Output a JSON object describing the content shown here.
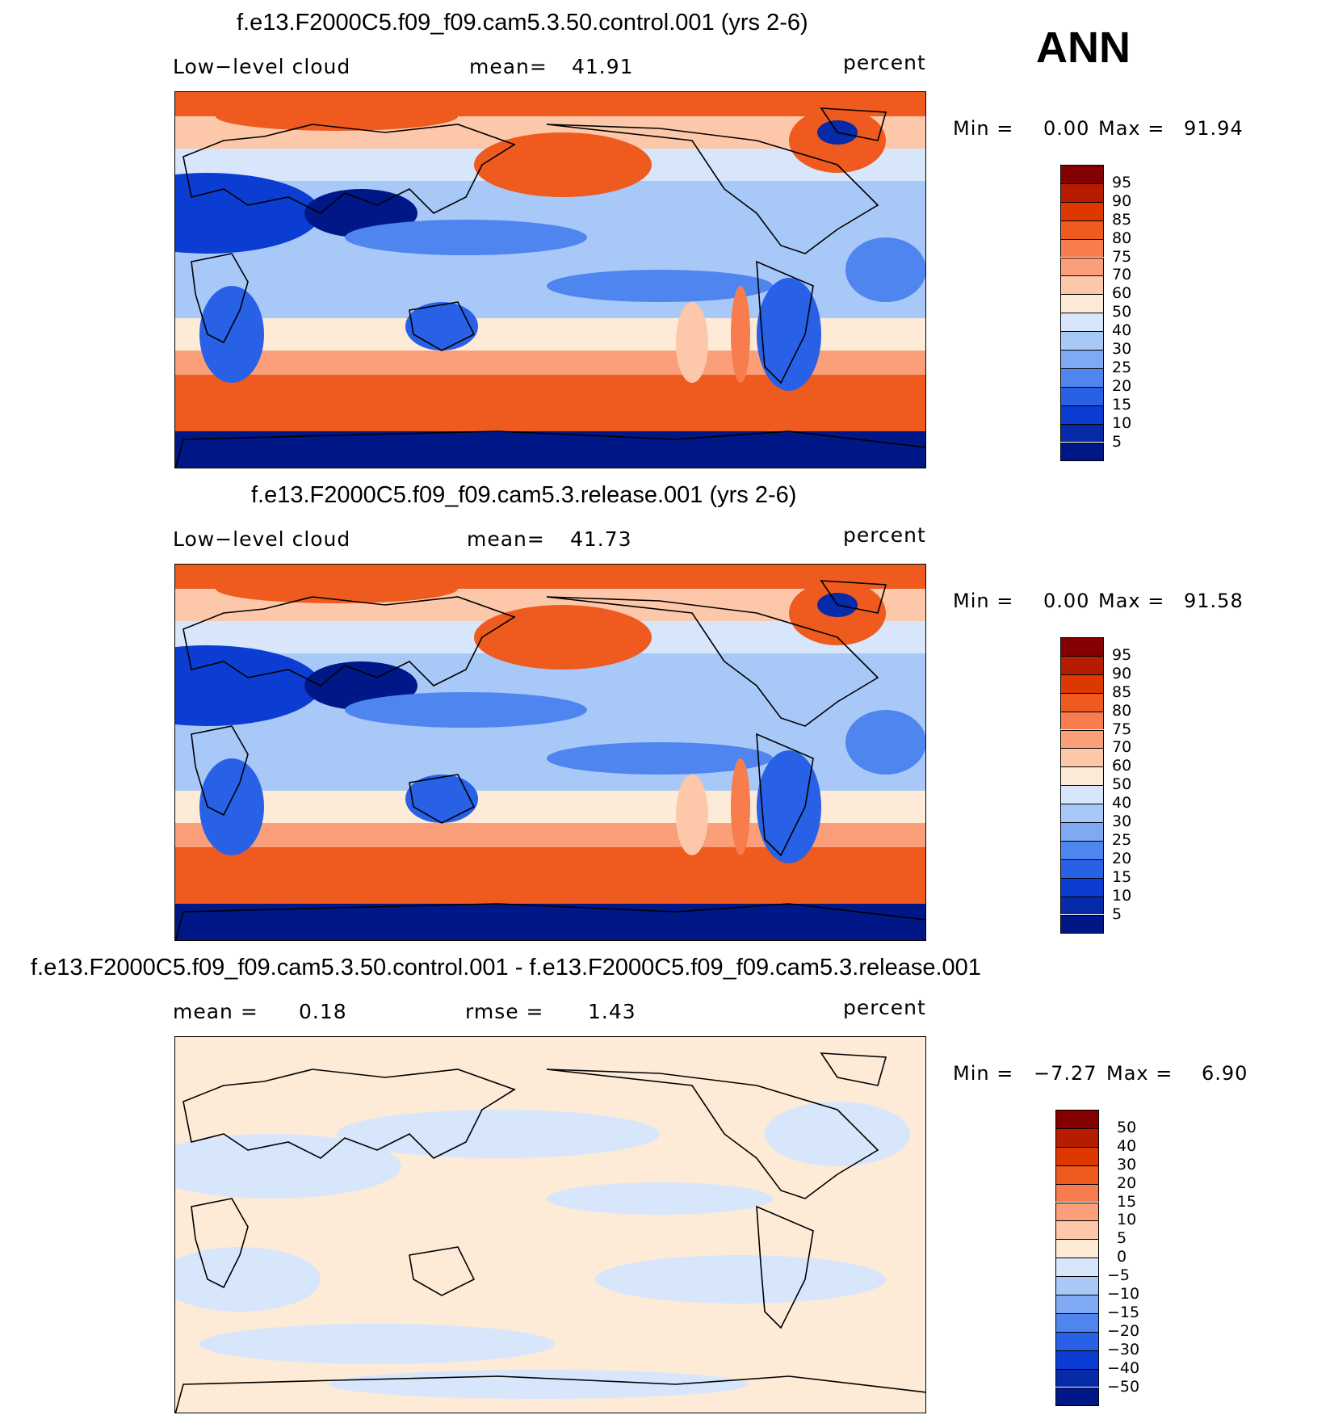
{
  "corner_label": "ANN",
  "panels": [
    {
      "title": "f.e13.F2000C5.f09_f09.cam5.3.50.control.001 (yrs 2-6)",
      "left_label": "Low−level cloud",
      "stat_label": "mean=",
      "stat_value": "41.91",
      "units": "percent",
      "min_label": "Min =",
      "min_value": "0.00",
      "max_label": "Max =",
      "max_value": "91.94"
    },
    {
      "title": "f.e13.F2000C5.f09_f09.cam5.3.release.001 (yrs 2-6)",
      "left_label": "Low−level cloud",
      "stat_label": "mean=",
      "stat_value": "41.73",
      "units": "percent",
      "min_label": "Min =",
      "min_value": "0.00",
      "max_label": "Max =",
      "max_value": "91.58"
    },
    {
      "title": "f.e13.F2000C5.f09_f09.cam5.3.50.control.001 - f.e13.F2000C5.f09_f09.cam5.3.release.001",
      "left_label": "mean =",
      "left_value": "0.18",
      "stat_label": "rmse =",
      "stat_value": "1.43",
      "units": "percent",
      "min_label": "Min =",
      "min_value": "−7.27",
      "max_label": "Max =",
      "max_value": "6.90"
    }
  ],
  "chart_data": [
    {
      "type": "heatmap",
      "variable": "Low-level cloud",
      "units": "percent",
      "mean": 41.91,
      "min": 0.0,
      "max": 91.94,
      "contour_levels": [
        5,
        10,
        15,
        20,
        25,
        30,
        40,
        50,
        60,
        70,
        75,
        80,
        85,
        90,
        95
      ],
      "colorbar_labels": [
        "95",
        "90",
        "85",
        "80",
        "75",
        "70",
        "60",
        "50",
        "40",
        "30",
        "25",
        "20",
        "15",
        "10",
        "5"
      ],
      "colors": [
        "#850000",
        "#b51c00",
        "#dd3800",
        "#ef5a1e",
        "#f77d4e",
        "#fb9f7a",
        "#fdc8aa",
        "#fdebd8",
        "#d7e6fb",
        "#a8c8f8",
        "#7fa9f3",
        "#4f85ef",
        "#2860e6",
        "#0c3dd2",
        "#062aa8",
        "#001887"
      ]
    },
    {
      "type": "heatmap",
      "variable": "Low-level cloud",
      "units": "percent",
      "mean": 41.73,
      "min": 0.0,
      "max": 91.58,
      "contour_levels": [
        5,
        10,
        15,
        20,
        25,
        30,
        40,
        50,
        60,
        70,
        75,
        80,
        85,
        90,
        95
      ],
      "colorbar_labels": [
        "95",
        "90",
        "85",
        "80",
        "75",
        "70",
        "60",
        "50",
        "40",
        "30",
        "25",
        "20",
        "15",
        "10",
        "5"
      ],
      "colors": [
        "#850000",
        "#b51c00",
        "#dd3800",
        "#ef5a1e",
        "#f77d4e",
        "#fb9f7a",
        "#fdc8aa",
        "#fdebd8",
        "#d7e6fb",
        "#a8c8f8",
        "#7fa9f3",
        "#4f85ef",
        "#2860e6",
        "#0c3dd2",
        "#062aa8",
        "#001887"
      ]
    },
    {
      "type": "heatmap",
      "variable": "Low-level cloud difference",
      "units": "percent",
      "mean": 0.18,
      "rmse": 1.43,
      "min": -7.27,
      "max": 6.9,
      "contour_levels": [
        -50,
        -40,
        -30,
        -20,
        -15,
        -10,
        -5,
        0,
        5,
        10,
        15,
        20,
        30,
        40,
        50
      ],
      "colorbar_labels": [
        "50",
        "40",
        "30",
        "20",
        "15",
        "10",
        "5",
        "0",
        "−5",
        "−10",
        "−15",
        "−20",
        "−30",
        "−40",
        "−50"
      ],
      "colors": [
        "#850000",
        "#b51c00",
        "#dd3800",
        "#ef5a1e",
        "#f77d4e",
        "#fb9f7a",
        "#fdc8aa",
        "#fdebd8",
        "#d7e6fb",
        "#a8c8f8",
        "#7fa9f3",
        "#4f85ef",
        "#2860e6",
        "#0c3dd2",
        "#062aa8",
        "#001887"
      ]
    }
  ]
}
